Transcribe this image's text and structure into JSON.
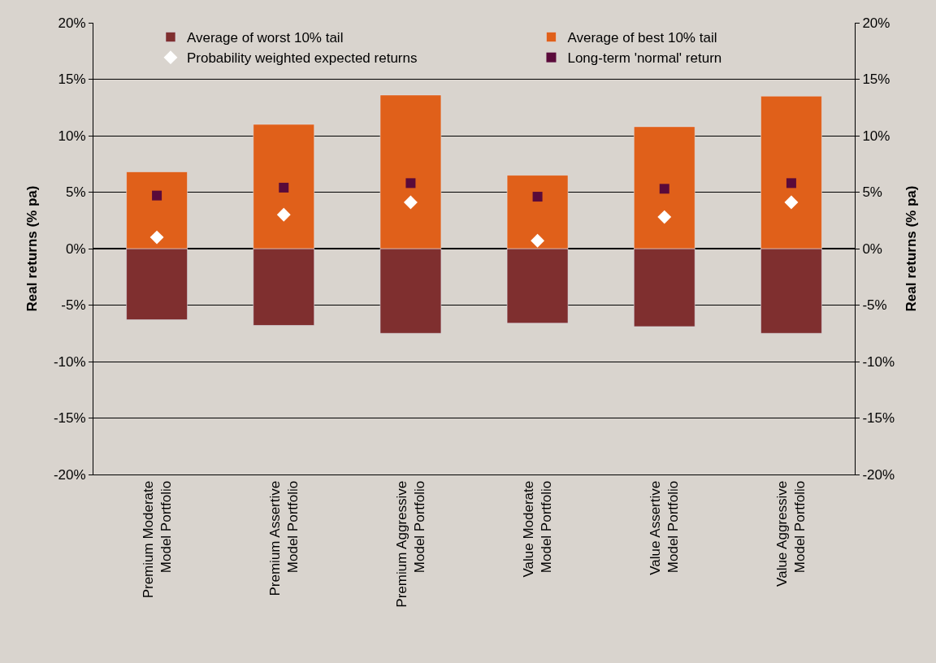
{
  "chart_data": {
    "type": "bar",
    "stacked": true,
    "ylabel": "Real returns (% pa)",
    "y2label": "Real returns (% pa)",
    "categories": [
      "Premium Moderate\nModel Portfolio",
      "Premium Assertive\nModel Portfolio",
      "Premium Aggressive\nModel Portfolio",
      "Value Moderate\nModel Portfolio",
      "Value Assertive\nModel Portfolio",
      "Value Aggressive\nModel Portfolio"
    ],
    "series": [
      {
        "name": "Average of worst 10% tail",
        "color": "#7f2f2f",
        "values": [
          -6.3,
          -6.8,
          -7.5,
          -6.6,
          -6.9,
          -7.5
        ]
      },
      {
        "name": "Average of best 10% tail",
        "color": "#e0601a",
        "values": [
          6.8,
          11.0,
          13.6,
          6.5,
          10.8,
          13.5
        ]
      },
      {
        "name": "Probability weighted expected returns",
        "type": "scatter",
        "marker": "diamond",
        "color": "#ffffff",
        "values": [
          1.0,
          3.0,
          4.1,
          0.7,
          2.8,
          4.1
        ]
      },
      {
        "name": "Long-term 'normal' return",
        "type": "scatter",
        "marker": "square",
        "color": "#5a0a3a",
        "values": [
          4.7,
          5.4,
          5.8,
          4.6,
          5.3,
          5.8
        ]
      }
    ],
    "ylim": [
      -20,
      20
    ],
    "yticks": [
      {
        "value": -20,
        "label": "-20%"
      },
      {
        "value": -15,
        "label": "-15%"
      },
      {
        "value": -10,
        "label": "-10%"
      },
      {
        "value": -5,
        "label": "-5%"
      },
      {
        "value": 0,
        "label": "0%"
      },
      {
        "value": 5,
        "label": "5%"
      },
      {
        "value": 10,
        "label": "10%"
      },
      {
        "value": 15,
        "label": "15%"
      },
      {
        "value": 20,
        "label": "20%"
      }
    ],
    "y2lim": [
      -20,
      20
    ],
    "y2ticks": [
      {
        "value": -20,
        "label": "-20%"
      },
      {
        "value": -15,
        "label": "-15%"
      },
      {
        "value": -10,
        "label": "-10%"
      },
      {
        "value": -5,
        "label": "-5%"
      },
      {
        "value": 0,
        "label": "0%"
      },
      {
        "value": 5,
        "label": "5%"
      },
      {
        "value": 10,
        "label": "10%"
      },
      {
        "value": 15,
        "label": "15%"
      },
      {
        "value": 20,
        "label": "20%"
      }
    ],
    "grid": "y",
    "legend": "top"
  }
}
